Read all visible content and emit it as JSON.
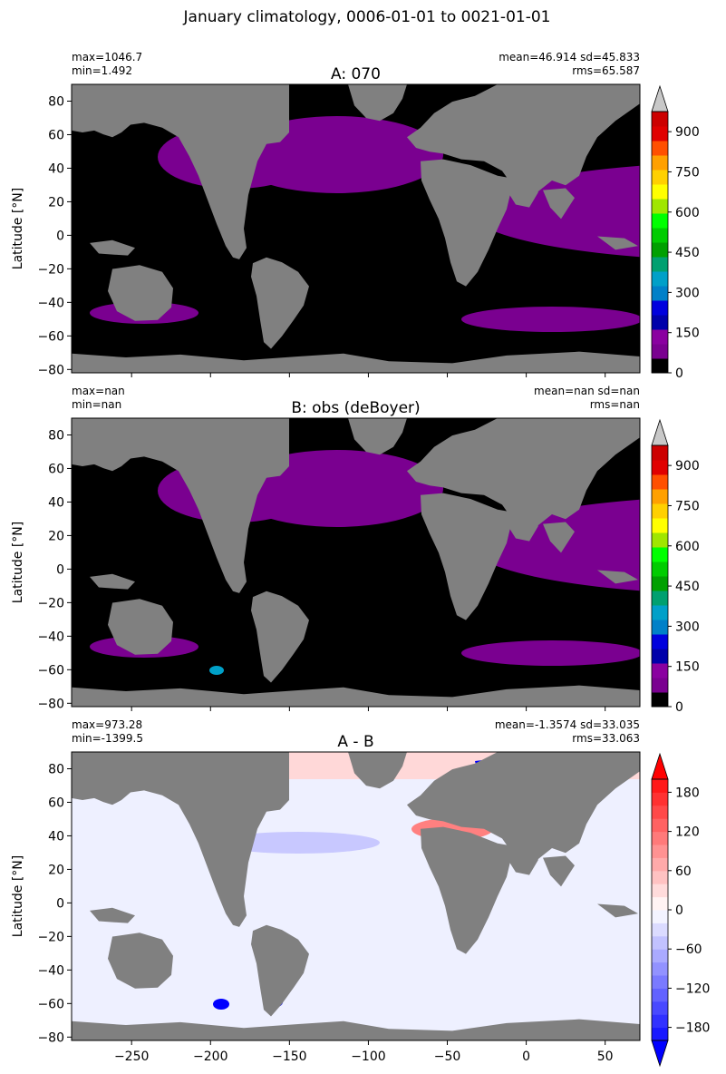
{
  "suptitle": "January climatology, 0006-01-01 to 0021-01-01",
  "panels": [
    {
      "title": "A: 070",
      "stats_left": [
        "max=1046.7",
        "min=1.492"
      ],
      "stats_right": [
        "mean=46.914 sd=45.833",
        "rms=65.587"
      ],
      "ylabel": "Latitude [°N]",
      "colorbar": {
        "ticks": [
          "0",
          "150",
          "300",
          "450",
          "600",
          "750",
          "900"
        ],
        "extend": "max"
      }
    },
    {
      "title": "B: obs (deBoyer)",
      "stats_left": [
        "max=nan",
        "min=nan"
      ],
      "stats_right": [
        "mean=nan sd=nan",
        "rms=nan"
      ],
      "ylabel": "Latitude [°N]",
      "colorbar": {
        "ticks": [
          "0",
          "150",
          "300",
          "450",
          "600",
          "750",
          "900"
        ],
        "extend": "max"
      }
    },
    {
      "title": "A - B",
      "stats_left": [
        "max=973.28",
        "min=-1399.5"
      ],
      "stats_right": [
        "mean=-1.3574 sd=33.035",
        "rms=33.063"
      ],
      "ylabel": "Latitude [°N]",
      "colorbar": {
        "ticks": [
          "−180",
          "−120",
          "−60",
          "0",
          "60",
          "120",
          "180"
        ],
        "extend": "both"
      }
    }
  ],
  "chart_data": {
    "type": "heatmap",
    "title": "January climatology, 0006-01-01 to 0021-01-01",
    "ylabel": "Latitude [°N]",
    "xlim": [
      -288,
      72
    ],
    "ylim": [
      -82,
      90
    ],
    "xticks": [
      -250,
      -200,
      -150,
      -100,
      -50,
      0,
      50
    ],
    "xtick_labels": [
      "−250",
      "−200",
      "−150",
      "−100",
      "−50",
      "0",
      "50"
    ],
    "yticks": [
      -80,
      -60,
      -40,
      -20,
      0,
      20,
      40,
      60,
      80
    ],
    "ytick_labels": [
      "−80",
      "−60",
      "−40",
      "−20",
      "0",
      "20",
      "40",
      "60",
      "80"
    ],
    "colors": {
      "land": "#808080",
      "background_low": "#000000",
      "diverging_neg": "#0000ff",
      "diverging_pos": "#ff0000"
    },
    "sequential_levels": [
      0,
      75,
      150,
      225,
      300,
      375,
      450,
      525,
      600,
      675,
      750,
      825,
      900,
      975
    ],
    "sequential_colors": [
      "#000000",
      "#7a0090",
      "#8a00a0",
      "#0000aa",
      "#0000dd",
      "#0080c8",
      "#00a0c8",
      "#00a070",
      "#00a000",
      "#00cc00",
      "#00ff00",
      "#a0e600",
      "#ffff00",
      "#ffd000",
      "#ffa000",
      "#ff5000",
      "#e00000",
      "#cc0000",
      "#c8c8c8"
    ],
    "diverging_levels": [
      -200,
      -180,
      -120,
      -60,
      0,
      60,
      120,
      180,
      200
    ],
    "panels": [
      {
        "name": "A: 070",
        "min": 1.492,
        "max": 1046.7,
        "mean": 46.914,
        "sd": 45.833,
        "rms": 65.587
      },
      {
        "name": "B: obs (deBoyer)"
      },
      {
        "name": "A - B",
        "min": -1399.5,
        "max": 973.28,
        "mean": -1.3574,
        "sd": 33.035,
        "rms": 33.063
      }
    ]
  }
}
